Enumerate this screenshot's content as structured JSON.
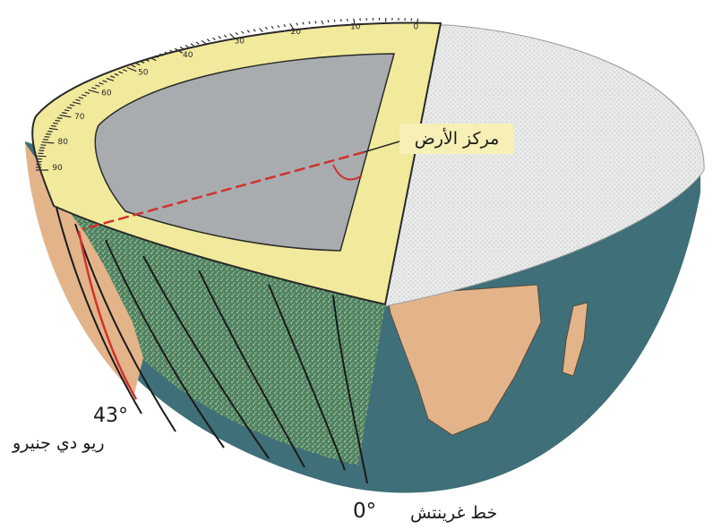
{
  "labels": {
    "earth_center": "مركز الأرض",
    "rio_angle": "43°",
    "rio_city": "ريو دي جنيرو",
    "greenwich_angle": "0°",
    "greenwich_line": "خط غرينتش"
  },
  "protractor": {
    "tick_labels": [
      "0",
      "10",
      "20",
      "30",
      "40",
      "50",
      "60",
      "70",
      "80",
      "90"
    ]
  },
  "colors": {
    "ocean": "#3f6f78",
    "land": "#e3b48a",
    "protractor": "#f1ea9c",
    "cut_face": "#a9acaf",
    "ray": "#d0322e"
  }
}
